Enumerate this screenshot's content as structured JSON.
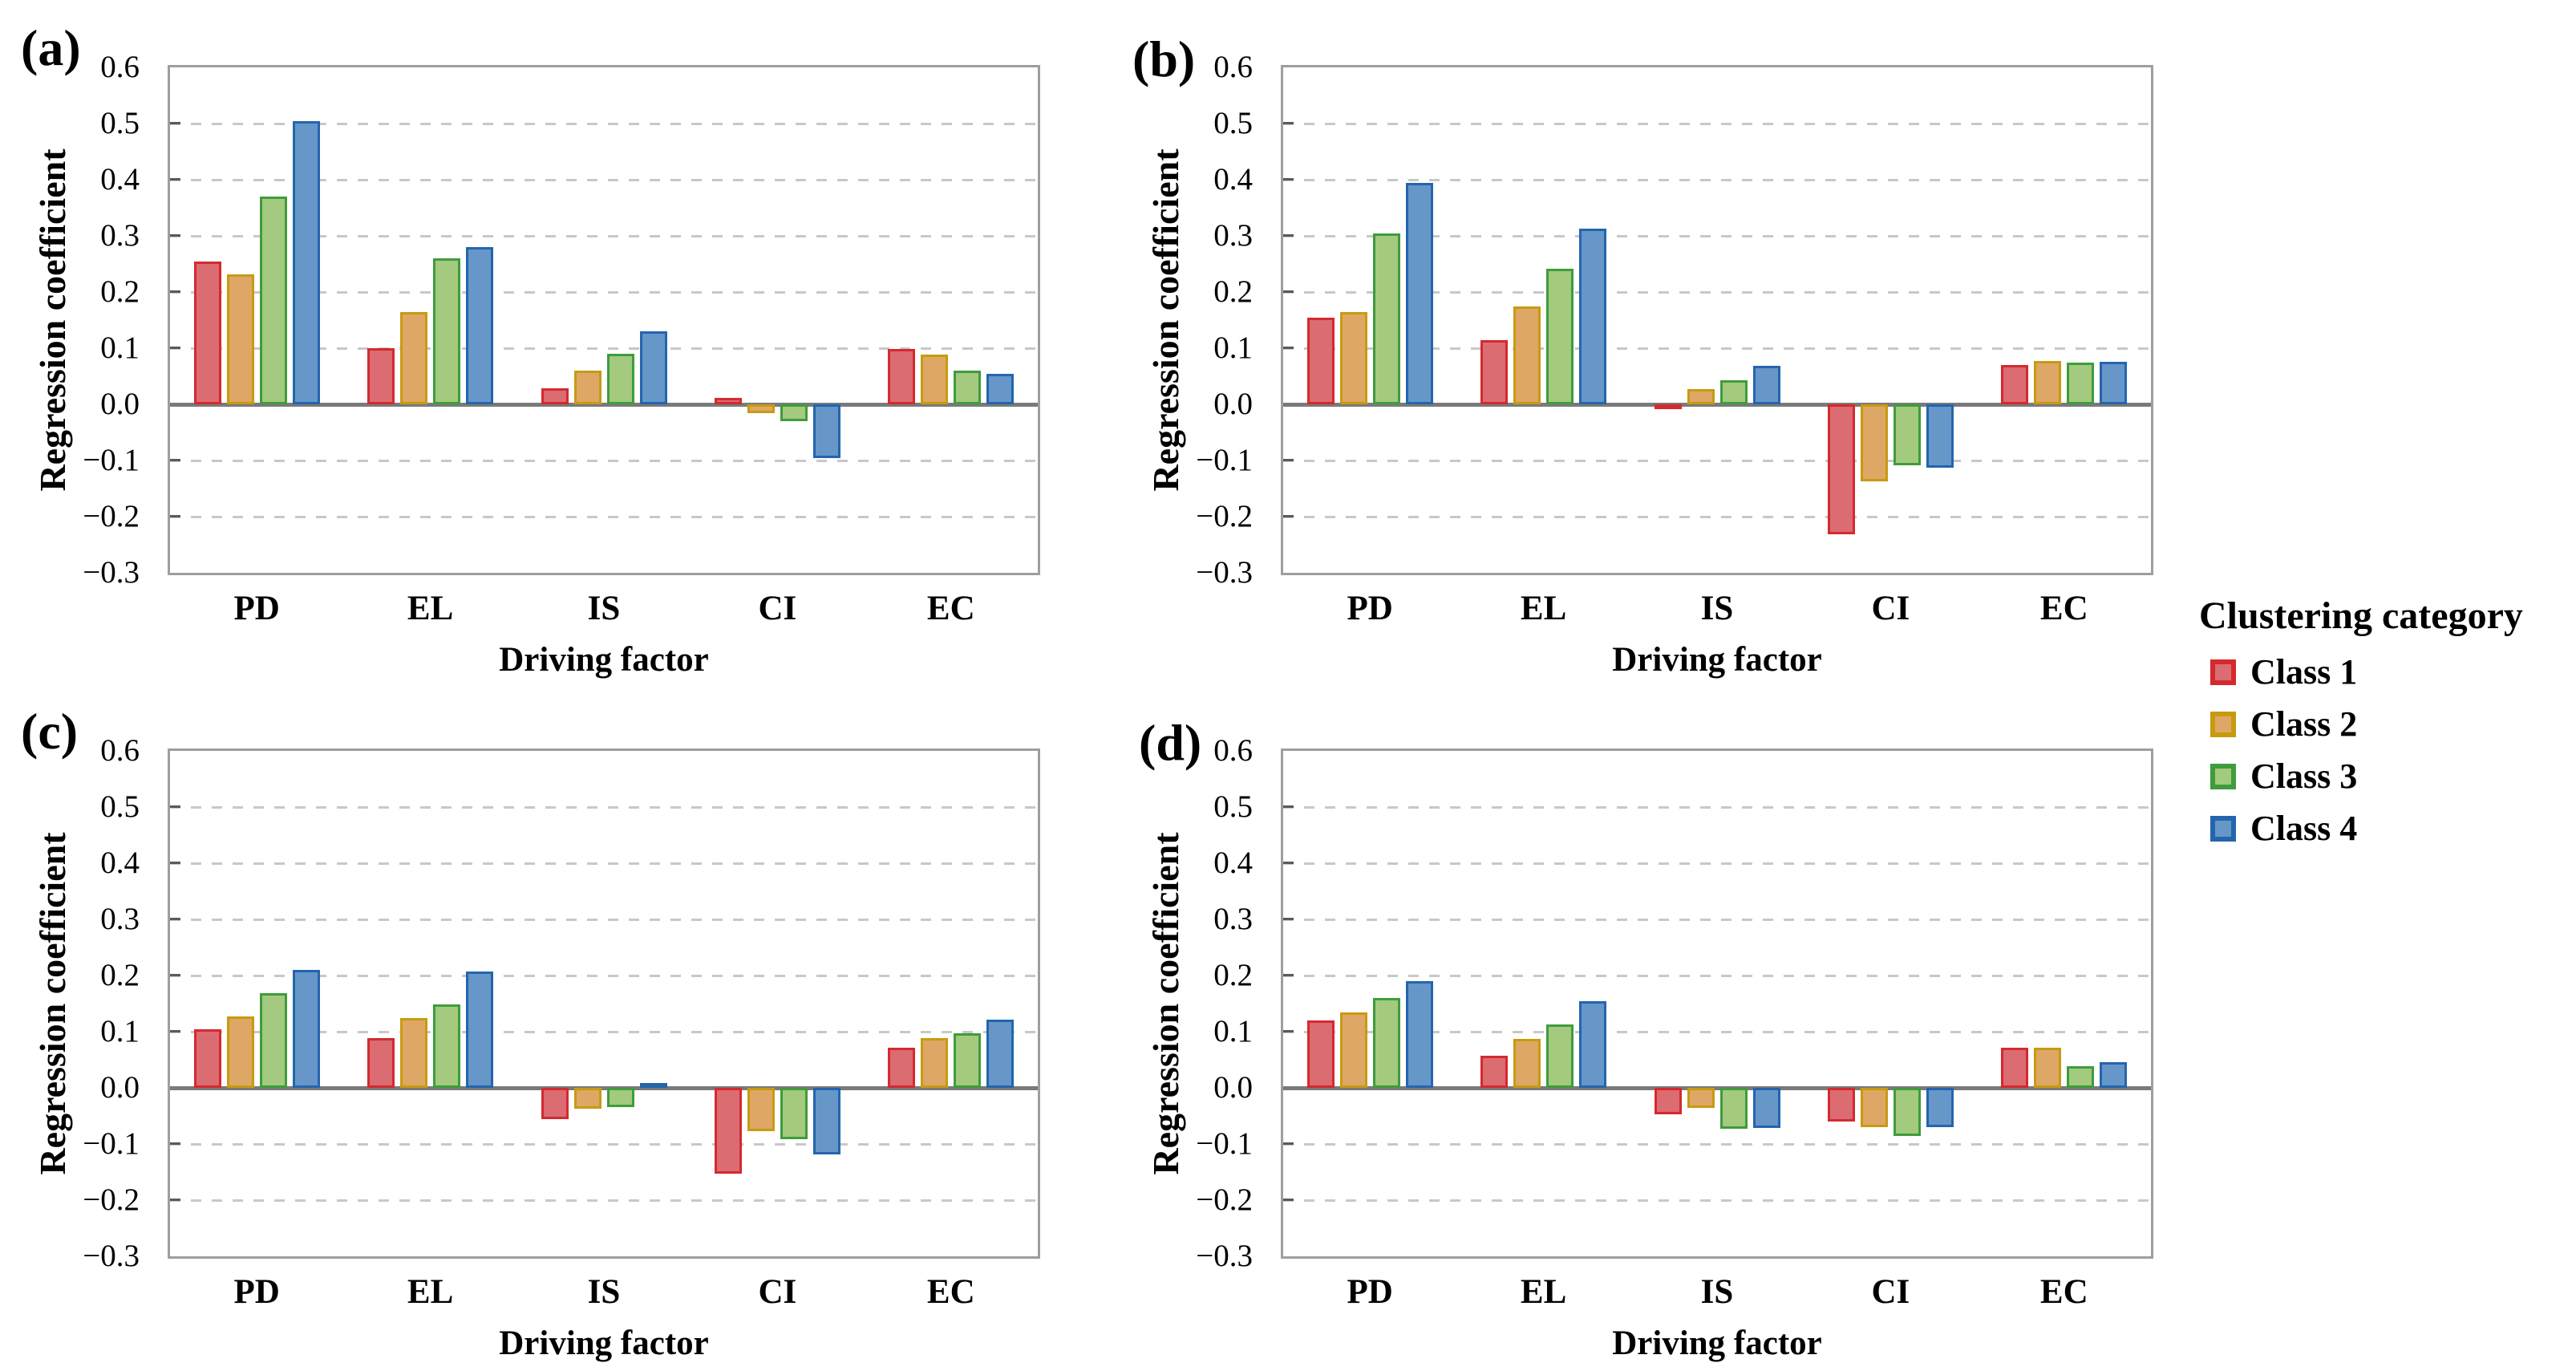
{
  "figure": {
    "legend": {
      "title": "Clustering category",
      "entries": [
        {
          "label": "Class 1",
          "fill": "#db6c72",
          "border": "#d42a2e"
        },
        {
          "label": "Class 2",
          "fill": "#dfa766",
          "border": "#c79b10"
        },
        {
          "label": "Class 3",
          "fill": "#a3ca7e",
          "border": "#3f9c3c"
        },
        {
          "label": "Class 4",
          "fill": "#6697c8",
          "border": "#2465ae"
        }
      ]
    },
    "axis_colors": {
      "frame": "#9e9e9e",
      "gridline": "#c8c8c8",
      "zero_line": "#7a7a7a",
      "tick": "#5a5a5a"
    },
    "ytick_labels": [
      "0.6",
      "0.5",
      "0.4",
      "0.3",
      "0.2",
      "0.1",
      "0.0",
      "−0.1",
      "−0.2",
      "−0.3"
    ]
  },
  "chart_data": [
    {
      "type": "bar",
      "panel_label": "(a)",
      "xlabel": "Driving factor",
      "ylabel": "Regression coefficient",
      "categories": [
        "PD",
        "EL",
        "IS",
        "CI",
        "EC"
      ],
      "ylim": [
        -0.3,
        0.6
      ],
      "ytick_step": 0.1,
      "grid": "horizontal-dashed",
      "legend_position": "figure-right",
      "series": [
        {
          "name": "Class 1",
          "values": [
            0.255,
            0.1,
            0.028,
            0.012,
            0.098
          ]
        },
        {
          "name": "Class 2",
          "values": [
            0.232,
            0.165,
            0.06,
            -0.015,
            0.088
          ]
        },
        {
          "name": "Class 3",
          "values": [
            0.37,
            0.26,
            0.09,
            -0.03,
            0.06
          ]
        },
        {
          "name": "Class 4",
          "values": [
            0.505,
            0.28,
            0.13,
            -0.095,
            0.055
          ]
        }
      ]
    },
    {
      "type": "bar",
      "panel_label": "(b)",
      "xlabel": "Driving factor",
      "ylabel": "Regression coefficient",
      "categories": [
        "PD",
        "EL",
        "IS",
        "CI",
        "EC"
      ],
      "ylim": [
        -0.3,
        0.6
      ],
      "ytick_step": 0.1,
      "grid": "horizontal-dashed",
      "series": [
        {
          "name": "Class 1",
          "values": [
            0.155,
            0.115,
            -0.008,
            -0.232,
            0.07
          ]
        },
        {
          "name": "Class 2",
          "values": [
            0.165,
            0.175,
            0.027,
            -0.137,
            0.077
          ]
        },
        {
          "name": "Class 3",
          "values": [
            0.305,
            0.242,
            0.043,
            -0.109,
            0.074
          ]
        },
        {
          "name": "Class 4",
          "values": [
            0.395,
            0.313,
            0.068,
            -0.113,
            0.076
          ]
        }
      ]
    },
    {
      "type": "bar",
      "panel_label": "(c)",
      "xlabel": "Driving factor",
      "ylabel": "Regression coefficient",
      "categories": [
        "PD",
        "EL",
        "IS",
        "CI",
        "EC"
      ],
      "ylim": [
        -0.3,
        0.6
      ],
      "ytick_step": 0.1,
      "grid": "horizontal-dashed",
      "series": [
        {
          "name": "Class 1",
          "values": [
            0.104,
            0.088,
            -0.056,
            -0.153,
            0.072
          ]
        },
        {
          "name": "Class 2",
          "values": [
            0.127,
            0.124,
            -0.037,
            -0.077,
            0.088
          ]
        },
        {
          "name": "Class 3",
          "values": [
            0.168,
            0.149,
            -0.034,
            -0.091,
            0.097
          ]
        },
        {
          "name": "Class 4",
          "values": [
            0.21,
            0.207,
            0.008,
            -0.118,
            0.121
          ]
        }
      ]
    },
    {
      "type": "bar",
      "panel_label": "(d)",
      "xlabel": "Driving factor",
      "ylabel": "Regression coefficient",
      "categories": [
        "PD",
        "EL",
        "IS",
        "CI",
        "EC"
      ],
      "ylim": [
        -0.3,
        0.6
      ],
      "ytick_step": 0.1,
      "grid": "horizontal-dashed",
      "series": [
        {
          "name": "Class 1",
          "values": [
            0.12,
            0.057,
            -0.047,
            -0.06,
            0.071
          ]
        },
        {
          "name": "Class 2",
          "values": [
            0.135,
            0.087,
            -0.035,
            -0.07,
            0.072
          ]
        },
        {
          "name": "Class 3",
          "values": [
            0.16,
            0.113,
            -0.073,
            -0.085,
            0.039
          ]
        },
        {
          "name": "Class 4",
          "values": [
            0.19,
            0.155,
            -0.071,
            -0.07,
            0.046
          ]
        }
      ]
    }
  ]
}
